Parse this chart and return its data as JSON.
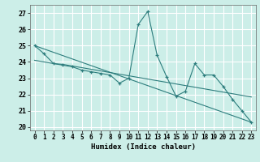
{
  "xlabel": "Humidex (Indice chaleur)",
  "background_color": "#cceee8",
  "grid_color": "#ffffff",
  "line_color": "#2d7d7d",
  "xlim": [
    -0.5,
    23.5
  ],
  "ylim": [
    19.8,
    27.5
  ],
  "yticks": [
    20,
    21,
    22,
    23,
    24,
    25,
    26,
    27
  ],
  "xticks": [
    0,
    1,
    2,
    3,
    4,
    5,
    6,
    7,
    8,
    9,
    10,
    11,
    12,
    13,
    14,
    15,
    16,
    17,
    18,
    19,
    20,
    21,
    22,
    23
  ],
  "series_main": {
    "x": [
      0,
      1,
      2,
      3,
      4,
      5,
      6,
      7,
      8,
      9,
      10,
      11,
      12,
      13,
      14,
      15,
      16,
      17,
      18,
      19,
      20,
      21,
      22,
      23
    ],
    "y": [
      25.0,
      24.5,
      23.9,
      23.8,
      23.7,
      23.5,
      23.4,
      23.3,
      23.2,
      22.7,
      23.0,
      26.3,
      27.1,
      24.4,
      23.1,
      21.9,
      22.2,
      23.9,
      23.2,
      23.2,
      22.5,
      21.7,
      21.0,
      20.3
    ]
  },
  "series_linear": {
    "x": [
      0,
      23
    ],
    "y": [
      25.0,
      20.3
    ]
  },
  "series_smooth": {
    "x": [
      0,
      1,
      2,
      3,
      4,
      5,
      6,
      7,
      8,
      9,
      10,
      11,
      12,
      13,
      14,
      15,
      16,
      17,
      18,
      19,
      20,
      21,
      22,
      23
    ],
    "y": [
      24.1,
      24.0,
      23.9,
      23.85,
      23.75,
      23.65,
      23.55,
      23.45,
      23.35,
      23.25,
      23.15,
      23.05,
      22.95,
      22.85,
      22.75,
      22.65,
      22.55,
      22.45,
      22.35,
      22.25,
      22.15,
      22.05,
      21.95,
      21.85
    ]
  }
}
